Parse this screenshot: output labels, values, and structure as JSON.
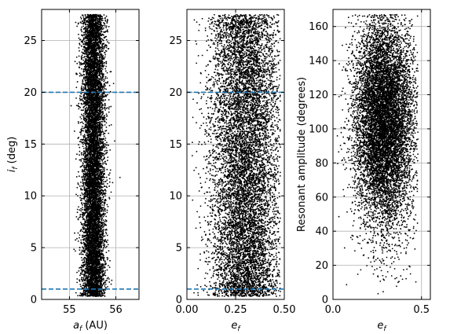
{
  "chart_data": [
    {
      "type": "scatter",
      "xlabel_main": "a",
      "xlabel_sub": "f",
      "xlabel_unit": " (AU)",
      "ylabel_main": "i",
      "ylabel_sub": "f",
      "ylabel_unit": " (deg)",
      "xlim": [
        54.4,
        56.5
      ],
      "ylim": [
        0,
        28
      ],
      "xticks": [
        55,
        56
      ],
      "xtick_labels": [
        "55",
        "56"
      ],
      "yticks": [
        0,
        5,
        10,
        15,
        20,
        25
      ],
      "ytick_labels": [
        "0",
        "5",
        "10",
        "15",
        "20",
        "25"
      ],
      "hlines": [
        1,
        20
      ],
      "hline_color": "#1f77b4",
      "point_color": "#000000",
      "grid": true,
      "distribution": {
        "x": {
          "kind": "normal",
          "mean": 55.52,
          "sd": 0.12
        },
        "y": {
          "kind": "dense_0_to_28",
          "min": 0.3,
          "max": 27.5
        }
      }
    },
    {
      "type": "scatter",
      "xlabel_main": "e",
      "xlabel_sub": "f",
      "xlabel_unit": "",
      "ylabel_main": "",
      "ylabel_sub": "",
      "ylabel_unit": "",
      "xlim": [
        0.0,
        0.5
      ],
      "ylim": [
        0,
        28
      ],
      "xticks": [
        0.0,
        0.25,
        0.5
      ],
      "xtick_labels": [
        "0.00",
        "0.25",
        "0.50"
      ],
      "yticks": [
        0,
        5,
        10,
        15,
        20,
        25
      ],
      "ytick_labels": [
        "0",
        "5",
        "10",
        "15",
        "20",
        "25"
      ],
      "hlines": [
        1,
        20
      ],
      "hline_color": "#1f77b4",
      "point_color": "#000000",
      "grid": true,
      "distribution": {
        "x": {
          "kind": "normal",
          "mean": 0.3,
          "sd": 0.09,
          "min": 0.02,
          "max": 0.48
        },
        "y": {
          "kind": "dense_0_to_28",
          "min": 0.3,
          "max": 27.5
        }
      }
    },
    {
      "type": "scatter",
      "xlabel_main": "e",
      "xlabel_sub": "f",
      "xlabel_unit": "",
      "ylabel_main": "Resonant amplitude (degrees)",
      "ylabel_sub": "",
      "ylabel_unit": "",
      "xlim": [
        0.0,
        0.55
      ],
      "ylim": [
        0,
        170
      ],
      "xticks": [
        0.0,
        0.5
      ],
      "xtick_labels": [
        "0.0",
        "0.5"
      ],
      "yticks": [
        0,
        20,
        40,
        60,
        80,
        100,
        120,
        140,
        160
      ],
      "ytick_labels": [
        "0",
        "20",
        "40",
        "60",
        "80",
        "100",
        "120",
        "140",
        "160"
      ],
      "hlines": [],
      "hline_color": "#1f77b4",
      "point_color": "#000000",
      "grid": true,
      "distribution": {
        "x": {
          "kind": "normal",
          "mean": 0.29,
          "sd": 0.085,
          "min": 0.02,
          "max": 0.48
        },
        "y": {
          "kind": "normal",
          "mean": 105,
          "sd": 32,
          "min": 3,
          "max": 167
        }
      }
    }
  ]
}
